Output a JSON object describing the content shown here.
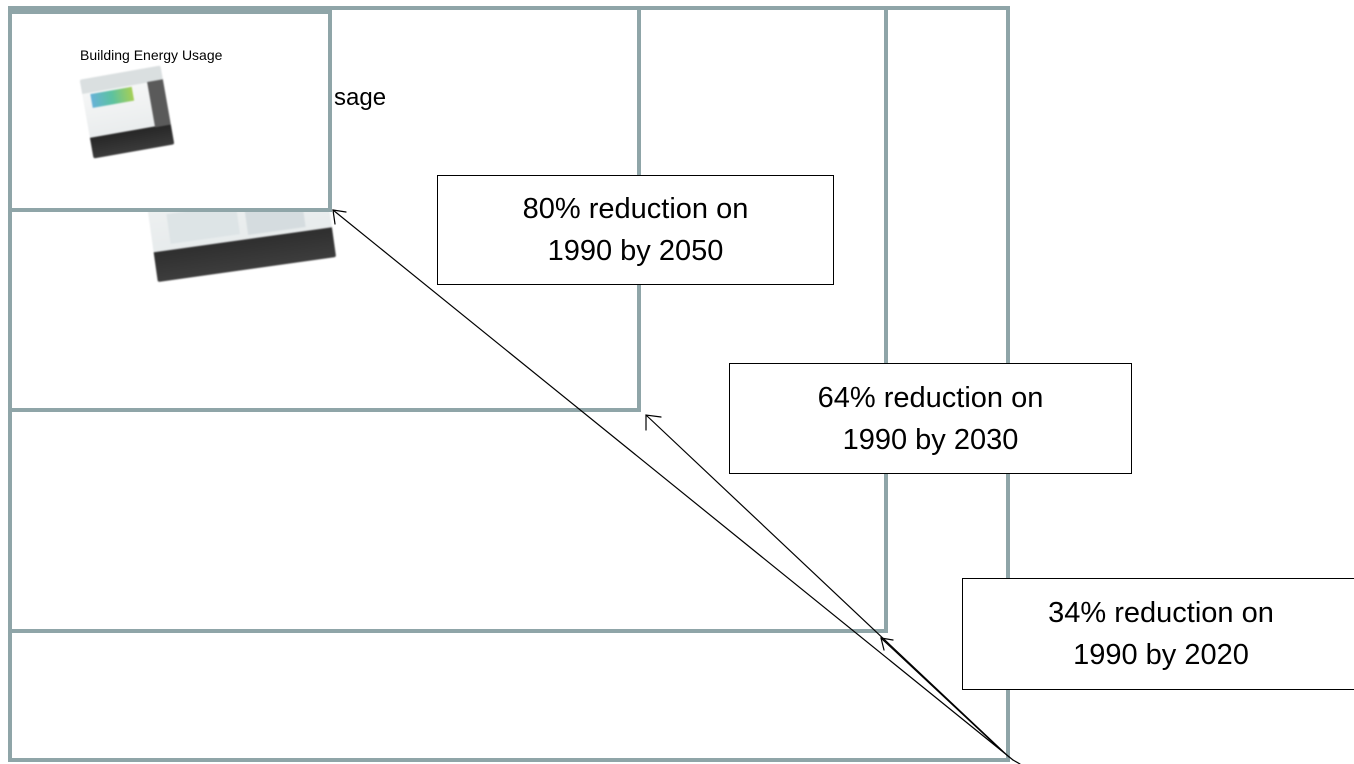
{
  "diagram": {
    "clipped_heading": "sage",
    "inset_title": "Building Energy Usage",
    "callouts": {
      "target_2050": {
        "line1": "80% reduction on",
        "line2": "1990 by 2050"
      },
      "target_2030": {
        "line1": "64% reduction on",
        "line2": "1990 by 2030"
      },
      "target_2020": {
        "line1": "34% reduction on",
        "line2": "1990 by 2020"
      }
    },
    "colors": {
      "frame_border": "#8fa5a8",
      "callout_border": "#000000",
      "arrow": "#000000"
    }
  }
}
